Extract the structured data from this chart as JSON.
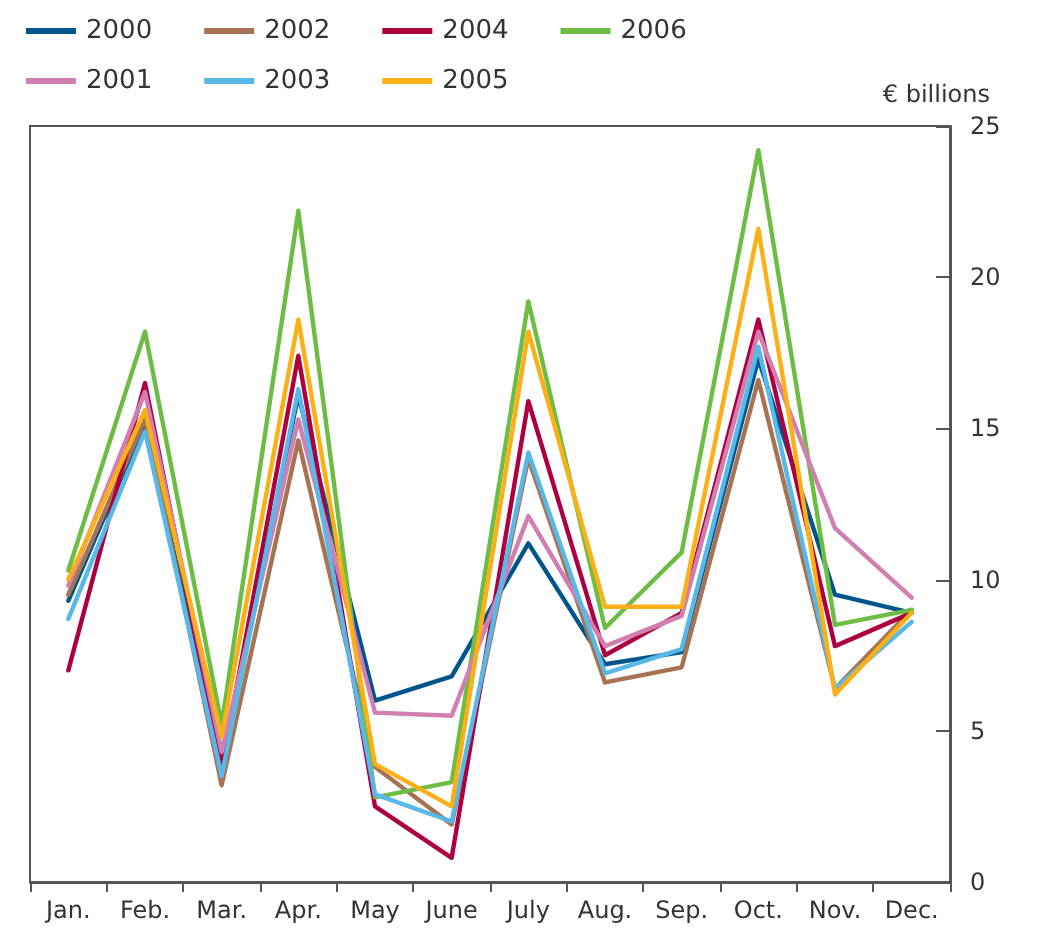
{
  "chart_data": {
    "type": "line",
    "ylabel": "€ billions",
    "categories": [
      "Jan.",
      "Feb.",
      "Mar.",
      "Apr.",
      "May",
      "June",
      "July",
      "Aug.",
      "Sep.",
      "Oct.",
      "Nov.",
      "Dec."
    ],
    "series": [
      {
        "name": "2000",
        "color": "#00568c",
        "values": [
          9.3,
          15.2,
          3.8,
          16.1,
          6.0,
          6.8,
          11.2,
          7.2,
          7.6,
          17.3,
          9.5,
          8.9
        ]
      },
      {
        "name": "2002",
        "color": "#a87352",
        "values": [
          9.5,
          15.3,
          3.2,
          14.6,
          3.8,
          1.9,
          14.0,
          6.6,
          7.1,
          16.6,
          6.4,
          9.0
        ]
      },
      {
        "name": "2004",
        "color": "#ad0040",
        "values": [
          7.0,
          16.5,
          3.8,
          17.4,
          2.5,
          0.8,
          15.9,
          7.5,
          8.9,
          18.6,
          7.8,
          8.9
        ]
      },
      {
        "name": "2006",
        "color": "#6dbd45",
        "values": [
          10.3,
          18.2,
          5.2,
          22.2,
          2.8,
          3.3,
          19.2,
          8.4,
          10.9,
          24.2,
          8.5,
          9.0
        ]
      },
      {
        "name": "2001",
        "color": "#d17fb0",
        "values": [
          9.8,
          16.2,
          4.3,
          15.3,
          5.6,
          5.5,
          12.1,
          7.8,
          8.8,
          18.2,
          11.7,
          9.4
        ]
      },
      {
        "name": "2003",
        "color": "#58b8e8",
        "values": [
          8.7,
          14.9,
          3.5,
          16.3,
          2.9,
          2.0,
          14.2,
          6.9,
          7.7,
          17.7,
          6.4,
          8.6
        ]
      },
      {
        "name": "2005",
        "color": "#fbb017",
        "values": [
          10.0,
          15.6,
          4.8,
          18.6,
          3.9,
          2.5,
          18.2,
          9.1,
          9.1,
          21.6,
          6.2,
          8.9
        ]
      }
    ],
    "ylim": [
      0,
      25
    ],
    "yticks": [
      0,
      5,
      10,
      15,
      20,
      25
    ],
    "grid": false,
    "legend": "top left",
    "marker": "none",
    "line_style": "solid"
  }
}
